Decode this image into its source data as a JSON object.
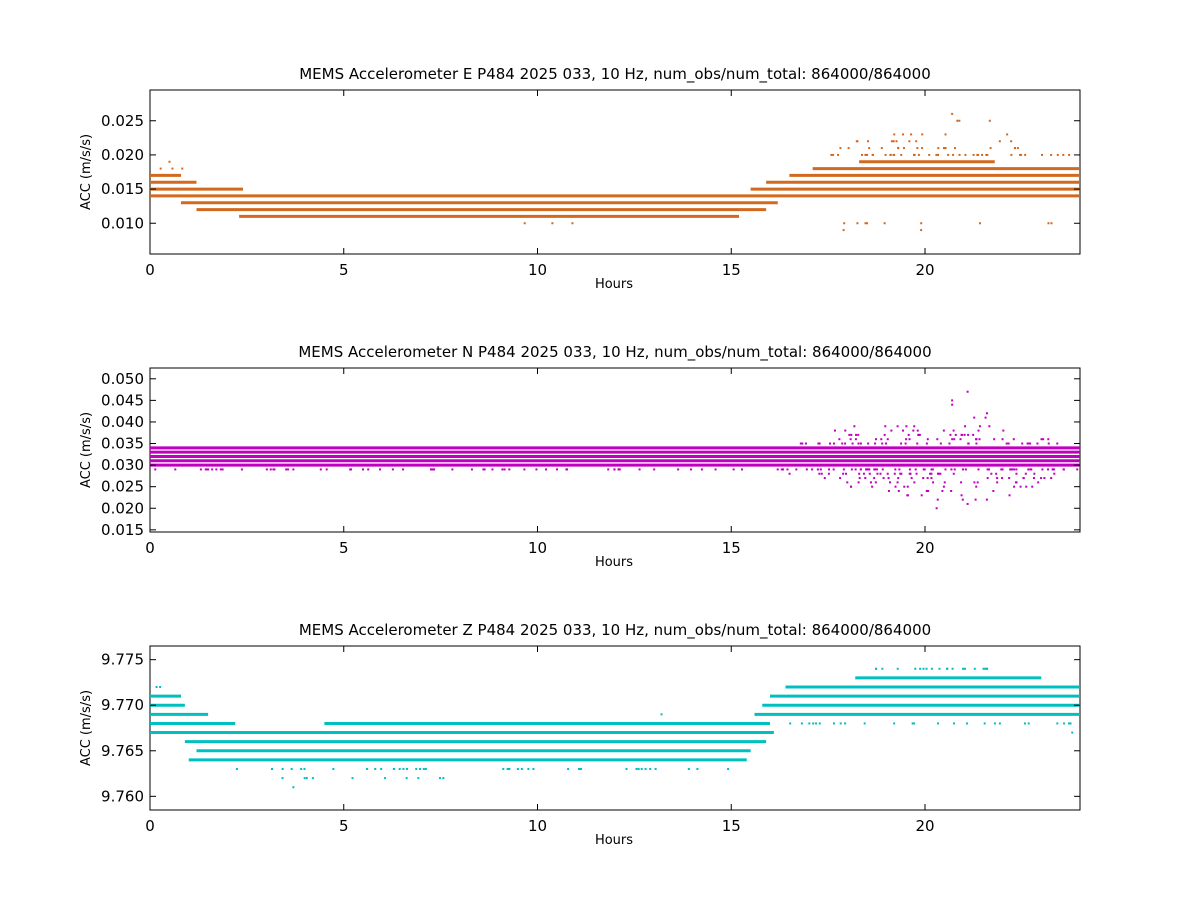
{
  "chart_data": [
    {
      "type": "scatter",
      "title": "MEMS Accelerometer E P484 2025 033, 10 Hz, num_obs/num_total: 864000/864000",
      "xlabel": "Hours",
      "ylabel": "ACC (m/s/s)",
      "xlim": [
        0,
        24
      ],
      "ylim": [
        0.0055,
        0.0295
      ],
      "xticks": [
        0,
        5,
        10,
        15,
        20
      ],
      "yticks": [
        0.01,
        0.015,
        0.02,
        0.025
      ],
      "ytick_labels": [
        "0.010",
        "0.015",
        "0.020",
        "0.025"
      ],
      "color": "#d2691e",
      "quantization": 0.001,
      "grid": false,
      "legend": "none",
      "bands": [
        {
          "x": [
            2.3,
            15.2
          ],
          "y": 0.011
        },
        {
          "x": [
            1.2,
            15.9
          ],
          "y": 0.012
        },
        {
          "x": [
            0.8,
            16.2
          ],
          "y": 0.013
        },
        {
          "x": [
            0.0,
            24.0
          ],
          "y": 0.014
        },
        {
          "x": [
            0.0,
            2.4
          ],
          "y": 0.015
        },
        {
          "x": [
            15.5,
            24.0
          ],
          "y": 0.015
        },
        {
          "x": [
            0.0,
            1.2
          ],
          "y": 0.016
        },
        {
          "x": [
            15.9,
            24.0
          ],
          "y": 0.016
        },
        {
          "x": [
            0.0,
            0.8
          ],
          "y": 0.017
        },
        {
          "x": [
            16.5,
            24.0
          ],
          "y": 0.017
        },
        {
          "x": [
            17.1,
            24.0
          ],
          "y": 0.018
        },
        {
          "x": [
            18.3,
            21.8
          ],
          "y": 0.019
        }
      ],
      "scatter": [
        {
          "x": [
            17.5,
            24.0
          ],
          "y": 0.02,
          "n": 40
        },
        {
          "x": [
            17.6,
            22.7
          ],
          "y": 0.021,
          "n": 18
        },
        {
          "x": [
            17.8,
            22.5
          ],
          "y": 0.022,
          "n": 10
        },
        {
          "x": [
            19.1,
            22.2
          ],
          "y": 0.023,
          "n": 6
        },
        {
          "x": [
            20.7,
            21.9
          ],
          "y": 0.025,
          "n": 3
        },
        {
          "x": [
            17.4,
            23.4
          ],
          "y": 0.01,
          "n": 9
        },
        {
          "x": [
            0.2,
            0.9
          ],
          "y": 0.018,
          "n": 3
        },
        {
          "x": [
            0.5,
            0.6
          ],
          "y": 0.019,
          "n": 1
        },
        {
          "x": [
            8.1,
            13.6
          ],
          "y": 0.01,
          "n": 3
        }
      ],
      "points": [
        {
          "x": 20.7,
          "y": 0.026
        },
        {
          "x": 17.9,
          "y": 0.009
        },
        {
          "x": 19.9,
          "y": 0.009
        }
      ]
    },
    {
      "type": "scatter",
      "title": "MEMS Accelerometer N P484 2025 033, 10 Hz, num_obs/num_total: 864000/864000",
      "xlabel": "Hours",
      "ylabel": "ACC (m/s/s)",
      "xlim": [
        0,
        24
      ],
      "ylim": [
        0.0145,
        0.0525
      ],
      "xticks": [
        0,
        5,
        10,
        15,
        20
      ],
      "yticks": [
        0.015,
        0.02,
        0.025,
        0.03,
        0.035,
        0.04,
        0.045,
        0.05
      ],
      "ytick_labels": [
        "0.015",
        "0.020",
        "0.025",
        "0.030",
        "0.035",
        "0.040",
        "0.045",
        "0.050"
      ],
      "color": "#bf00bf",
      "quantization": 0.001,
      "grid": false,
      "legend": "none",
      "bands": [
        {
          "x": [
            0.0,
            24.0
          ],
          "y": 0.03
        },
        {
          "x": [
            0.0,
            24.0
          ],
          "y": 0.031
        },
        {
          "x": [
            0.0,
            24.0
          ],
          "y": 0.032
        },
        {
          "x": [
            0.0,
            24.0
          ],
          "y": 0.033
        },
        {
          "x": [
            0.0,
            24.0
          ],
          "y": 0.034
        }
      ],
      "scatter": [
        {
          "x": [
            0.0,
            15.5
          ],
          "y": 0.029,
          "n": 60
        },
        {
          "x": [
            16.0,
            24.0
          ],
          "y": 0.029,
          "n": 60
        },
        {
          "x": [
            16.5,
            23.5
          ],
          "y": 0.028,
          "n": 30
        },
        {
          "x": [
            16.5,
            23.5
          ],
          "y": 0.035,
          "n": 35
        },
        {
          "x": [
            17.2,
            23.3
          ],
          "y": 0.027,
          "n": 22
        },
        {
          "x": [
            17.2,
            23.3
          ],
          "y": 0.036,
          "n": 22
        },
        {
          "x": [
            17.4,
            23.0
          ],
          "y": 0.026,
          "n": 16
        },
        {
          "x": [
            17.4,
            23.0
          ],
          "y": 0.037,
          "n": 16
        },
        {
          "x": [
            17.5,
            22.8
          ],
          "y": 0.025,
          "n": 12
        },
        {
          "x": [
            17.5,
            22.8
          ],
          "y": 0.038,
          "n": 10
        },
        {
          "x": [
            17.6,
            22.4
          ],
          "y": 0.039,
          "n": 8
        },
        {
          "x": [
            18.6,
            22.2
          ],
          "y": 0.024,
          "n": 7
        },
        {
          "x": [
            19.0,
            22.6
          ],
          "y": 0.023,
          "n": 5
        },
        {
          "x": [
            19.4,
            21.8
          ],
          "y": 0.022,
          "n": 4
        },
        {
          "x": [
            21.0,
            21.7
          ],
          "y": 0.041,
          "n": 2
        }
      ],
      "points": [
        {
          "x": 20.7,
          "y": 0.044
        },
        {
          "x": 20.7,
          "y": 0.045
        },
        {
          "x": 21.6,
          "y": 0.042
        },
        {
          "x": 21.1,
          "y": 0.047
        },
        {
          "x": 20.3,
          "y": 0.02
        },
        {
          "x": 21.1,
          "y": 0.021
        }
      ]
    },
    {
      "type": "scatter",
      "title": "MEMS Accelerometer Z P484 2025 033, 10 Hz, num_obs/num_total: 864000/864000",
      "xlabel": "Hours",
      "ylabel": "ACC (m/s/s)",
      "xlim": [
        0,
        24
      ],
      "ylim": [
        9.7585,
        9.7765
      ],
      "xticks": [
        0,
        5,
        10,
        15,
        20
      ],
      "yticks": [
        9.76,
        9.765,
        9.77,
        9.775
      ],
      "ytick_labels": [
        "9.760",
        "9.765",
        "9.770",
        "9.775"
      ],
      "color": "#00bfbf",
      "quantization": 0.001,
      "grid": false,
      "legend": "none",
      "bands": [
        {
          "x": [
            1.0,
            15.4
          ],
          "y": 9.764
        },
        {
          "x": [
            1.2,
            15.5
          ],
          "y": 9.765
        },
        {
          "x": [
            0.9,
            15.9
          ],
          "y": 9.766
        },
        {
          "x": [
            0.0,
            16.1
          ],
          "y": 9.767
        },
        {
          "x": [
            0.0,
            2.2
          ],
          "y": 9.768
        },
        {
          "x": [
            4.5,
            16.0
          ],
          "y": 9.768
        },
        {
          "x": [
            0.0,
            1.5
          ],
          "y": 9.769
        },
        {
          "x": [
            15.6,
            24.0
          ],
          "y": 9.769
        },
        {
          "x": [
            0.0,
            0.9
          ],
          "y": 9.77
        },
        {
          "x": [
            15.8,
            24.0
          ],
          "y": 9.77
        },
        {
          "x": [
            0.0,
            0.8
          ],
          "y": 9.771
        },
        {
          "x": [
            16.0,
            24.0
          ],
          "y": 9.771
        },
        {
          "x": [
            16.4,
            24.0
          ],
          "y": 9.772
        },
        {
          "x": [
            18.2,
            23.0
          ],
          "y": 9.773
        }
      ],
      "scatter": [
        {
          "x": [
            2.0,
            15.0
          ],
          "y": 9.763,
          "n": 40
        },
        {
          "x": [
            2.5,
            8.2
          ],
          "y": 9.762,
          "n": 10
        },
        {
          "x": [
            18.6,
            21.7
          ],
          "y": 9.774,
          "n": 20
        },
        {
          "x": [
            16.2,
            23.8
          ],
          "y": 9.768,
          "n": 25
        },
        {
          "x": [
            0.0,
            0.4
          ],
          "y": 9.772,
          "n": 2
        }
      ],
      "points": [
        {
          "x": 3.7,
          "y": 9.761
        },
        {
          "x": 13.2,
          "y": 9.769
        },
        {
          "x": 23.8,
          "y": 9.767
        }
      ]
    }
  ]
}
